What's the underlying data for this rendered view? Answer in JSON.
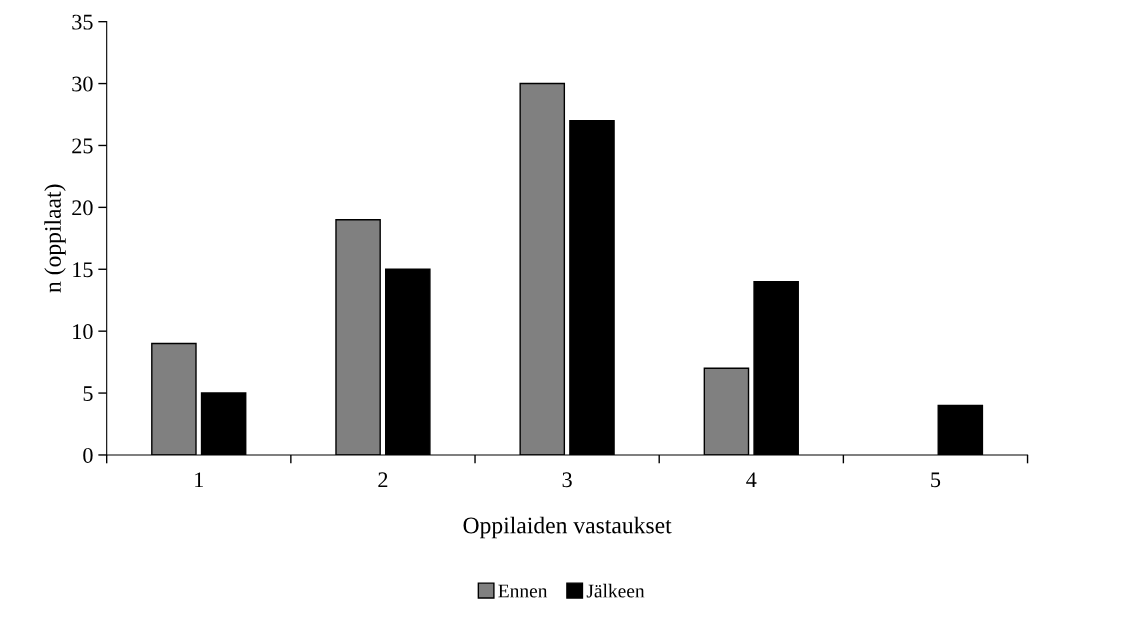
{
  "chart_data": {
    "type": "bar",
    "xlabel": "Oppilaiden vastaukset",
    "ylabel": "n (oppilaat)",
    "categories": [
      "1",
      "2",
      "3",
      "4",
      "5"
    ],
    "series": [
      {
        "name": "Ennen",
        "color": "#808080",
        "values": [
          9,
          19,
          30,
          7,
          null
        ]
      },
      {
        "name": "Jälkeen",
        "color": "#000000",
        "values": [
          5,
          15,
          27,
          14,
          4
        ]
      }
    ],
    "ylim": [
      0,
      35
    ],
    "yticks": [
      0,
      5,
      10,
      15,
      20,
      25,
      30,
      35
    ],
    "grid": false,
    "legend": "bottom"
  }
}
